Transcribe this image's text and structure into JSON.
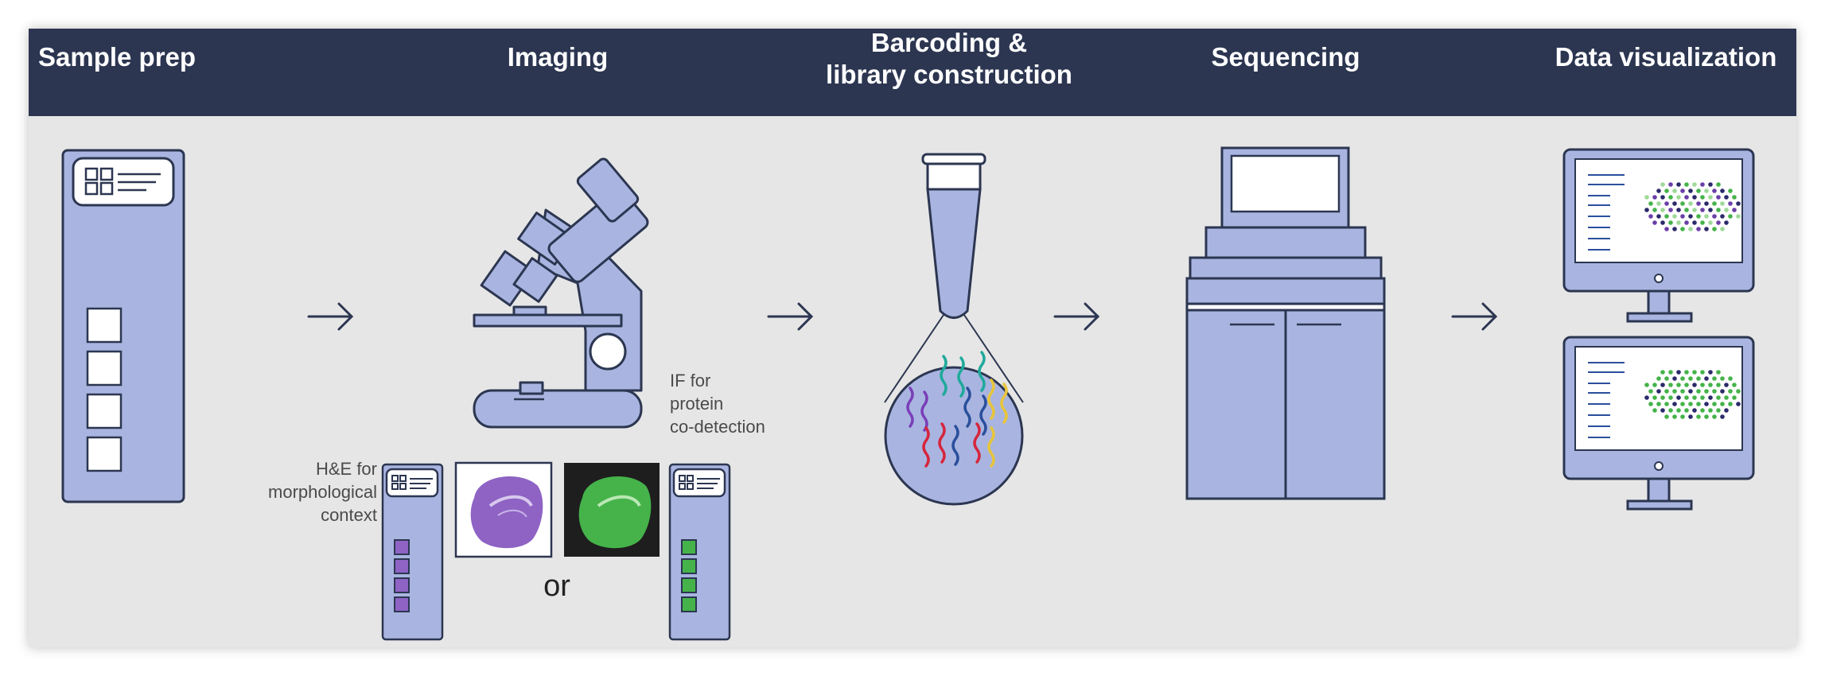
{
  "stages": [
    {
      "id": "sample-prep",
      "title_lines": [
        "Sample prep"
      ]
    },
    {
      "id": "imaging",
      "title_lines": [
        "Imaging"
      ]
    },
    {
      "id": "barcoding",
      "title_lines": [
        "Barcoding &",
        "library construction"
      ]
    },
    {
      "id": "sequencing",
      "title_lines": [
        "Sequencing"
      ]
    },
    {
      "id": "data-visualization",
      "title_lines": [
        "Data visualization"
      ]
    }
  ],
  "imaging": {
    "he_caption": [
      "H&E for",
      "morphological",
      "context"
    ],
    "if_caption": [
      "IF for",
      "protein",
      "co-detection"
    ],
    "or_label": "or"
  },
  "colors": {
    "header_bg": "#2c3651",
    "panel_bg": "#e6e6e6",
    "device_fill": "#a9b5e0",
    "outline": "#2c3651",
    "he_stain": "#8e63c4",
    "if_stain": "#45b34a",
    "if_bg": "#1e1e1e",
    "barcode_colors": [
      "#7a3fb8",
      "#1fa99b",
      "#e8c53a",
      "#d6253d",
      "#2a4f9c"
    ]
  },
  "icons": [
    "slide-icon",
    "microscope-icon",
    "tube-icon",
    "sequencer-icon",
    "monitor-icon",
    "arrow-right-icon"
  ]
}
